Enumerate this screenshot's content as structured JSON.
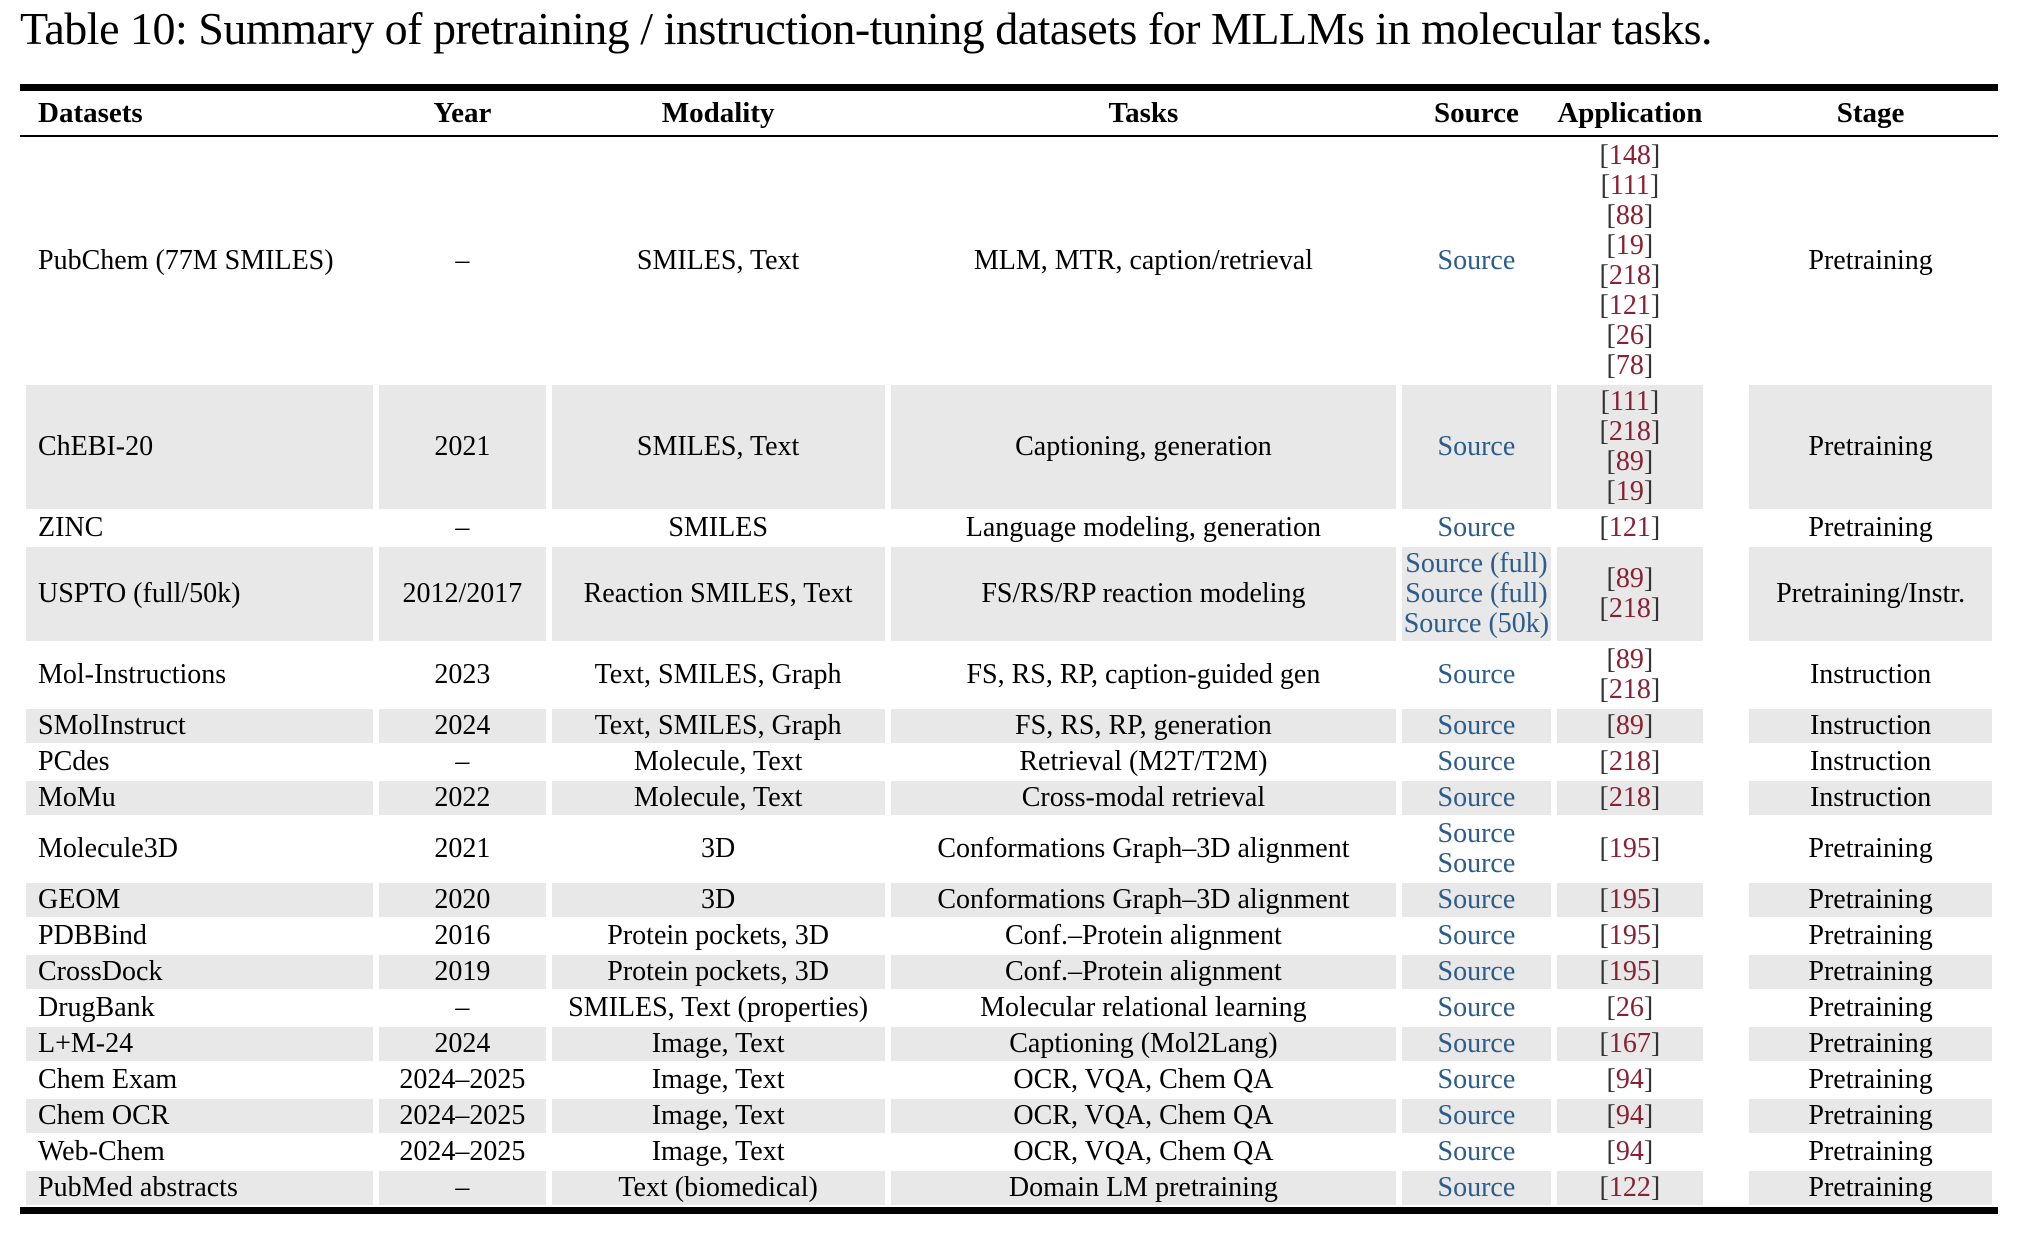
{
  "title": "Table 10: Summary of pretraining / instruction-tuning datasets for MLLMs in molecular tasks.",
  "colors": {
    "source_link": "#2a5c8d",
    "citation": "#8b2033",
    "bracket": "#333333",
    "row_stripe": "#e8e8e8"
  },
  "table": {
    "columns": [
      "Datasets",
      "Year",
      "Modality",
      "Tasks",
      "Source",
      "Application",
      "Stage"
    ],
    "rows": [
      {
        "name": "PubChem (77M SMILES)",
        "year": "–",
        "modality": "SMILES, Text",
        "tasks": "MLM, MTR, caption/retrieval",
        "sources": [
          "Source"
        ],
        "citations": [
          "148",
          "111",
          "88",
          "19",
          "218",
          "121",
          "26",
          "78"
        ],
        "stage": "Pretraining"
      },
      {
        "name": "ChEBI-20",
        "year": "2021",
        "modality": "SMILES, Text",
        "tasks": "Captioning, generation",
        "sources": [
          "Source"
        ],
        "citations": [
          "111",
          "218",
          "89",
          "19"
        ],
        "stage": "Pretraining"
      },
      {
        "name": "ZINC",
        "year": "–",
        "modality": "SMILES",
        "tasks": "Language modeling, generation",
        "sources": [
          "Source"
        ],
        "citations": [
          "121"
        ],
        "stage": "Pretraining"
      },
      {
        "name": "USPTO (full/50k)",
        "year": "2012/2017",
        "modality": "Reaction SMILES, Text",
        "tasks": "FS/RS/RP reaction modeling",
        "sources": [
          "Source (full)",
          "Source (full)",
          "Source (50k)"
        ],
        "citations": [
          "89",
          "218"
        ],
        "stage": "Pretraining/Instr."
      },
      {
        "name": "Mol-Instructions",
        "year": "2023",
        "modality": "Text, SMILES, Graph",
        "tasks": "FS, RS, RP, caption-guided gen",
        "sources": [
          "Source"
        ],
        "citations": [
          "89",
          "218"
        ],
        "stage": "Instruction"
      },
      {
        "name": "SMolInstruct",
        "year": "2024",
        "modality": "Text, SMILES, Graph",
        "tasks": "FS, RS, RP, generation",
        "sources": [
          "Source"
        ],
        "citations": [
          "89"
        ],
        "stage": "Instruction"
      },
      {
        "name": "PCdes",
        "year": "–",
        "modality": "Molecule, Text",
        "tasks": "Retrieval (M2T/T2M)",
        "sources": [
          "Source"
        ],
        "citations": [
          "218"
        ],
        "stage": "Instruction"
      },
      {
        "name": "MoMu",
        "year": "2022",
        "modality": "Molecule, Text",
        "tasks": "Cross-modal retrieval",
        "sources": [
          "Source"
        ],
        "citations": [
          "218"
        ],
        "stage": "Instruction"
      },
      {
        "name": "Molecule3D",
        "year": "2021",
        "modality": "3D",
        "tasks": "Conformations Graph–3D alignment",
        "sources": [
          "Source",
          "Source"
        ],
        "citations": [
          "195"
        ],
        "stage": "Pretraining"
      },
      {
        "name": "GEOM",
        "year": "2020",
        "modality": "3D",
        "tasks": "Conformations Graph–3D alignment",
        "sources": [
          "Source"
        ],
        "citations": [
          "195"
        ],
        "stage": "Pretraining"
      },
      {
        "name": "PDBBind",
        "year": "2016",
        "modality": "Protein pockets, 3D",
        "tasks": "Conf.–Protein alignment",
        "sources": [
          "Source"
        ],
        "citations": [
          "195"
        ],
        "stage": "Pretraining"
      },
      {
        "name": "CrossDock",
        "year": "2019",
        "modality": "Protein pockets, 3D",
        "tasks": "Conf.–Protein alignment",
        "sources": [
          "Source"
        ],
        "citations": [
          "195"
        ],
        "stage": "Pretraining"
      },
      {
        "name": "DrugBank",
        "year": "–",
        "modality": "SMILES, Text (properties)",
        "tasks": "Molecular relational learning",
        "sources": [
          "Source"
        ],
        "citations": [
          "26"
        ],
        "stage": "Pretraining"
      },
      {
        "name": "L+M-24",
        "year": "2024",
        "modality": "Image, Text",
        "tasks": "Captioning (Mol2Lang)",
        "sources": [
          "Source"
        ],
        "citations": [
          "167"
        ],
        "stage": "Pretraining"
      },
      {
        "name": "Chem Exam",
        "year": "2024–2025",
        "modality": "Image, Text",
        "tasks": "OCR, VQA, Chem QA",
        "sources": [
          "Source"
        ],
        "citations": [
          "94"
        ],
        "stage": "Pretraining"
      },
      {
        "name": "Chem OCR",
        "year": "2024–2025",
        "modality": "Image, Text",
        "tasks": "OCR, VQA, Chem QA",
        "sources": [
          "Source"
        ],
        "citations": [
          "94"
        ],
        "stage": "Pretraining"
      },
      {
        "name": "Web-Chem",
        "year": "2024–2025",
        "modality": "Image, Text",
        "tasks": "OCR, VQA, Chem QA",
        "sources": [
          "Source"
        ],
        "citations": [
          "94"
        ],
        "stage": "Pretraining"
      },
      {
        "name": "PubMed abstracts",
        "year": "–",
        "modality": "Text (biomedical)",
        "tasks": "Domain LM pretraining",
        "sources": [
          "Source"
        ],
        "citations": [
          "122"
        ],
        "stage": "Pretraining"
      }
    ]
  }
}
